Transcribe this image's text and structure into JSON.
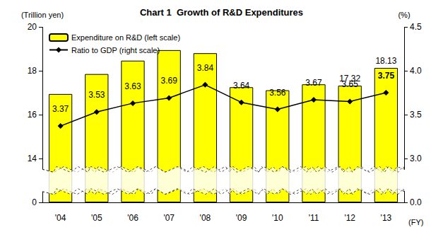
{
  "chart_data": {
    "type": "bar",
    "title": "Chart 1  Growth of R&D Expenditures",
    "x_label": "(FY)",
    "y_label": "(Trillion yen)",
    "y2_label": "(%)",
    "categories": [
      "'04",
      "'05",
      "'06",
      "'07",
      "'08",
      "'09",
      "'10",
      "'11",
      "'12",
      "'13"
    ],
    "series": [
      {
        "name": "Expenditure on R&D (left scale)",
        "type": "bar",
        "color": "#ffff00",
        "values": [
          16.94,
          17.85,
          18.46,
          18.94,
          18.8,
          17.25,
          17.11,
          17.38,
          17.32,
          18.13
        ],
        "value_labels": [
          null,
          null,
          null,
          null,
          null,
          null,
          null,
          null,
          "17.32",
          "18.13"
        ],
        "data_labels": true
      },
      {
        "name": "Ratio to GDP (right scale)",
        "type": "line",
        "axis": "y2",
        "color": "#000000",
        "marker": "diamond",
        "line_style": "solid",
        "values": [
          3.37,
          3.53,
          3.63,
          3.69,
          3.84,
          3.64,
          3.56,
          3.67,
          3.65,
          3.75
        ],
        "data_labels": true
      }
    ],
    "ylim": [
      0,
      20
    ],
    "yticks": [
      0,
      14,
      16,
      18,
      20
    ],
    "y2lim": [
      0,
      4.5
    ],
    "y2ticks": [
      {
        "value": 0,
        "label": "0.0"
      },
      {
        "value": 3,
        "label": "3.0"
      },
      3.5,
      {
        "value": 4,
        "label": "4.0"
      },
      4.5
    ],
    "grid": false,
    "legend": "upper left"
  }
}
